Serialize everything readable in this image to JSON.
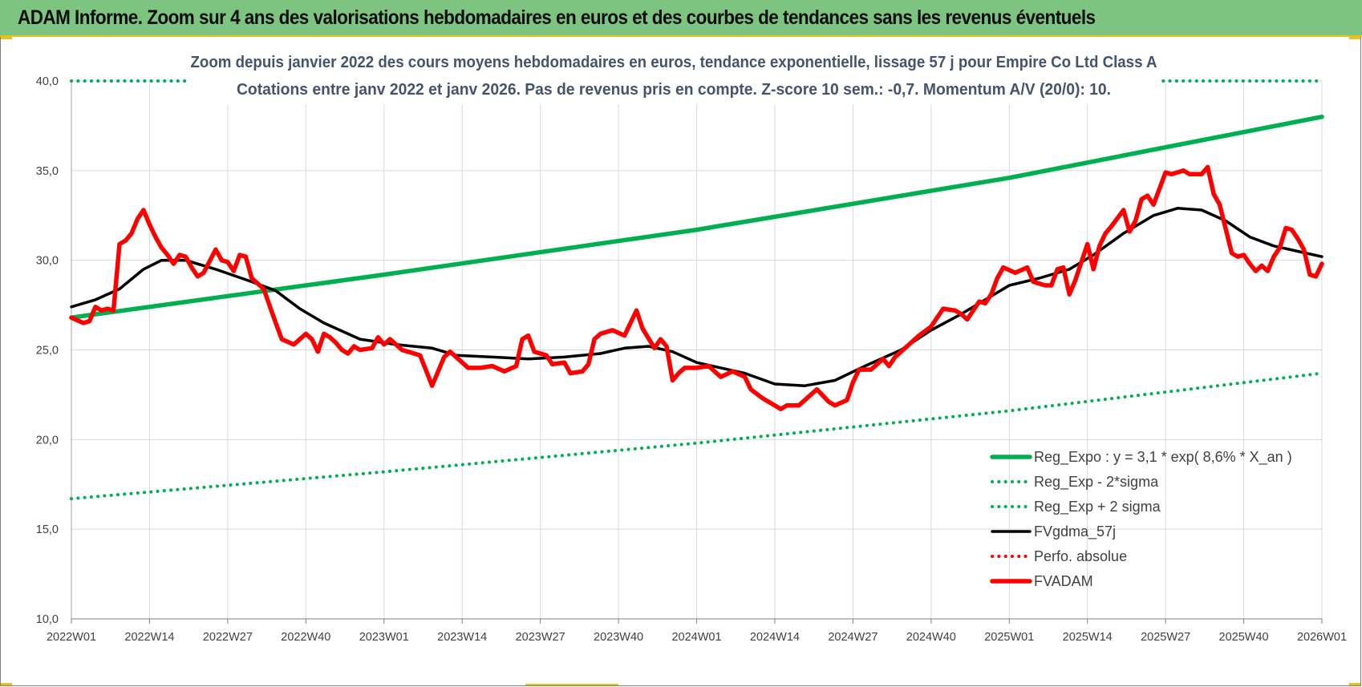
{
  "header": {
    "title": "ADAM Informe. Zoom sur 4 ans des valorisations hebdomadaires en euros et des courbes de tendances sans les revenus éventuels"
  },
  "colors": {
    "header_bg": "#7cc47f",
    "accent": "#e8c21a",
    "reg_green": "#00b050",
    "fvgdma": "#000000",
    "fvadam": "#ff0000",
    "grid": "#d9d9d9"
  },
  "chart_data": {
    "type": "line",
    "title_line1": "Zoom depuis janvier 2022 des cours moyens hebdomadaires en euros, tendance exponentielle, lissage 57 j pour Empire Co Ltd Class A",
    "title_line2": "Cotations entre janv 2022 et janv 2026. Pas de revenus pris en compte. Z-score 10 sem.: -0,7. Momentum A/V (20/0): 10.",
    "xlabel": "",
    "ylabel": "",
    "ylim": [
      10,
      40
    ],
    "y_ticks": [
      "10,0",
      "15,0",
      "20,0",
      "25,0",
      "30,0",
      "35,0",
      "40,0"
    ],
    "x_ticks": [
      "2022W01",
      "2022W14",
      "2022W27",
      "2022W40",
      "2023W01",
      "2023W14",
      "2023W27",
      "2023W40",
      "2024W01",
      "2024W14",
      "2024W27",
      "2024W40",
      "2025W01",
      "2025W14",
      "2025W27",
      "2025W40",
      "2026W01"
    ],
    "grid": true,
    "legend_position": "bottom-right",
    "series": [
      {
        "name": "Reg_Expo : y = 3,1 * exp( 8,6% *  X_an )",
        "style": "solid-thick",
        "color": "#00b050",
        "anchors": [
          [
            0,
            26.8
          ],
          [
            52,
            29.2
          ],
          [
            104,
            31.7
          ],
          [
            156,
            34.6
          ],
          [
            208,
            38.0
          ]
        ]
      },
      {
        "name": "Reg_Exp - 2*sigma",
        "style": "dotted",
        "color": "#00b050",
        "anchors": [
          [
            0,
            16.7
          ],
          [
            52,
            18.2
          ],
          [
            104,
            19.8
          ],
          [
            156,
            21.6
          ],
          [
            208,
            23.7
          ]
        ]
      },
      {
        "name": "Reg_Exp + 2 sigma",
        "style": "dotted",
        "color": "#00b050",
        "anchors": [
          [
            0,
            40.0
          ],
          [
            208,
            40.0
          ]
        ]
      },
      {
        "name": "FVgdma_57j",
        "style": "solid",
        "color": "#000000",
        "anchors": [
          [
            0,
            27.4
          ],
          [
            4,
            27.8
          ],
          [
            8,
            28.4
          ],
          [
            12,
            29.5
          ],
          [
            15,
            30.0
          ],
          [
            19,
            30.0
          ],
          [
            24,
            29.5
          ],
          [
            30,
            28.8
          ],
          [
            34,
            28.3
          ],
          [
            38,
            27.3
          ],
          [
            42,
            26.5
          ],
          [
            48,
            25.6
          ],
          [
            54,
            25.3
          ],
          [
            60,
            25.1
          ],
          [
            64,
            24.7
          ],
          [
            70,
            24.6
          ],
          [
            76,
            24.5
          ],
          [
            82,
            24.6
          ],
          [
            88,
            24.8
          ],
          [
            92,
            25.1
          ],
          [
            96,
            25.2
          ],
          [
            100,
            24.9
          ],
          [
            104,
            24.3
          ],
          [
            108,
            24.0
          ],
          [
            112,
            23.7
          ],
          [
            117,
            23.1
          ],
          [
            122,
            23.0
          ],
          [
            127,
            23.3
          ],
          [
            132,
            24.1
          ],
          [
            138,
            25.0
          ],
          [
            143,
            26.1
          ],
          [
            148,
            27.0
          ],
          [
            152,
            27.8
          ],
          [
            156,
            28.6
          ],
          [
            161,
            29.0
          ],
          [
            166,
            29.5
          ],
          [
            170,
            30.3
          ],
          [
            175,
            31.5
          ],
          [
            180,
            32.5
          ],
          [
            184,
            32.9
          ],
          [
            188,
            32.8
          ],
          [
            192,
            32.2
          ],
          [
            196,
            31.3
          ],
          [
            200,
            30.8
          ],
          [
            204,
            30.5
          ],
          [
            208,
            30.2
          ]
        ]
      },
      {
        "name": "Perfo. absolue",
        "style": "dotted",
        "color": "#ff0000",
        "anchors": []
      },
      {
        "name": "FVADAM",
        "style": "solid-thick",
        "color": "#ff0000",
        "anchors": [
          [
            0,
            26.8
          ],
          [
            2,
            26.5
          ],
          [
            3,
            26.6
          ],
          [
            4,
            27.4
          ],
          [
            5,
            27.2
          ],
          [
            6,
            27.3
          ],
          [
            7,
            27.2
          ],
          [
            8,
            30.9
          ],
          [
            9,
            31.1
          ],
          [
            10,
            31.5
          ],
          [
            11,
            32.3
          ],
          [
            12,
            32.8
          ],
          [
            13,
            32.0
          ],
          [
            14,
            31.3
          ],
          [
            15,
            30.7
          ],
          [
            16,
            30.3
          ],
          [
            17,
            29.8
          ],
          [
            18,
            30.3
          ],
          [
            19,
            30.2
          ],
          [
            20,
            29.6
          ],
          [
            21,
            29.1
          ],
          [
            22,
            29.3
          ],
          [
            24,
            30.6
          ],
          [
            25,
            30.0
          ],
          [
            26,
            29.9
          ],
          [
            27,
            29.4
          ],
          [
            28,
            30.3
          ],
          [
            29,
            30.2
          ],
          [
            30,
            29.0
          ],
          [
            32,
            28.4
          ],
          [
            34,
            26.5
          ],
          [
            35,
            25.6
          ],
          [
            37,
            25.3
          ],
          [
            39,
            25.9
          ],
          [
            40,
            25.6
          ],
          [
            41,
            24.9
          ],
          [
            42,
            25.9
          ],
          [
            43,
            25.7
          ],
          [
            44,
            25.4
          ],
          [
            45,
            25.0
          ],
          [
            46,
            24.8
          ],
          [
            47,
            25.2
          ],
          [
            48,
            25.0
          ],
          [
            50,
            25.1
          ],
          [
            51,
            25.7
          ],
          [
            52,
            25.3
          ],
          [
            53,
            25.6
          ],
          [
            55,
            25.0
          ],
          [
            58,
            24.7
          ],
          [
            60,
            23.0
          ],
          [
            62,
            24.6
          ],
          [
            63,
            24.9
          ],
          [
            64,
            24.6
          ],
          [
            66,
            24.0
          ],
          [
            68,
            24.0
          ],
          [
            70,
            24.1
          ],
          [
            72,
            23.8
          ],
          [
            74,
            24.1
          ],
          [
            75,
            25.6
          ],
          [
            76,
            25.8
          ],
          [
            77,
            24.9
          ],
          [
            79,
            24.7
          ],
          [
            80,
            24.2
          ],
          [
            82,
            24.3
          ],
          [
            83,
            23.7
          ],
          [
            85,
            23.8
          ],
          [
            86,
            24.2
          ],
          [
            87,
            25.6
          ],
          [
            88,
            25.9
          ],
          [
            90,
            26.1
          ],
          [
            92,
            25.8
          ],
          [
            94,
            27.2
          ],
          [
            95,
            26.2
          ],
          [
            97,
            25.1
          ],
          [
            98,
            25.6
          ],
          [
            99,
            25.2
          ],
          [
            100,
            23.3
          ],
          [
            101,
            23.7
          ],
          [
            102,
            24.0
          ],
          [
            104,
            24.0
          ],
          [
            106,
            24.1
          ],
          [
            108,
            23.5
          ],
          [
            110,
            23.8
          ],
          [
            112,
            23.5
          ],
          [
            113,
            22.8
          ],
          [
            115,
            22.3
          ],
          [
            117,
            21.9
          ],
          [
            118,
            21.7
          ],
          [
            119,
            21.9
          ],
          [
            121,
            21.9
          ],
          [
            122,
            22.2
          ],
          [
            124,
            22.8
          ],
          [
            126,
            22.1
          ],
          [
            127,
            21.9
          ],
          [
            129,
            22.2
          ],
          [
            130,
            23.2
          ],
          [
            131,
            23.9
          ],
          [
            133,
            23.9
          ],
          [
            135,
            24.5
          ],
          [
            136,
            24.1
          ],
          [
            137,
            24.6
          ],
          [
            139,
            25.2
          ],
          [
            141,
            25.8
          ],
          [
            143,
            26.3
          ],
          [
            145,
            27.3
          ],
          [
            147,
            27.2
          ],
          [
            148,
            27.0
          ],
          [
            149,
            26.7
          ],
          [
            151,
            27.7
          ],
          [
            152,
            27.6
          ],
          [
            153,
            28.1
          ],
          [
            154,
            29.0
          ],
          [
            155,
            29.6
          ],
          [
            157,
            29.3
          ],
          [
            159,
            29.6
          ],
          [
            160,
            28.8
          ],
          [
            162,
            28.6
          ],
          [
            163,
            28.6
          ],
          [
            164,
            29.5
          ],
          [
            165,
            29.6
          ],
          [
            166,
            28.1
          ],
          [
            167,
            28.9
          ],
          [
            168,
            29.9
          ],
          [
            169,
            30.9
          ],
          [
            170,
            29.5
          ],
          [
            171,
            30.8
          ],
          [
            172,
            31.5
          ],
          [
            173,
            31.9
          ],
          [
            175,
            32.8
          ],
          [
            176,
            31.6
          ],
          [
            177,
            32.2
          ],
          [
            178,
            33.4
          ],
          [
            179,
            33.6
          ],
          [
            180,
            33.1
          ],
          [
            182,
            34.9
          ],
          [
            183,
            34.8
          ],
          [
            185,
            35.0
          ],
          [
            186,
            34.8
          ],
          [
            188,
            34.8
          ],
          [
            189,
            35.2
          ],
          [
            190,
            33.7
          ],
          [
            191,
            33.1
          ],
          [
            193,
            30.4
          ],
          [
            194,
            30.2
          ],
          [
            195,
            30.3
          ],
          [
            196,
            29.8
          ],
          [
            197,
            29.4
          ],
          [
            198,
            29.7
          ],
          [
            199,
            29.4
          ],
          [
            200,
            30.2
          ],
          [
            201,
            30.7
          ],
          [
            202,
            31.8
          ],
          [
            203,
            31.7
          ],
          [
            204,
            31.2
          ],
          [
            205,
            30.6
          ],
          [
            206,
            29.2
          ],
          [
            207,
            29.1
          ],
          [
            208,
            29.8
          ]
        ]
      }
    ]
  }
}
